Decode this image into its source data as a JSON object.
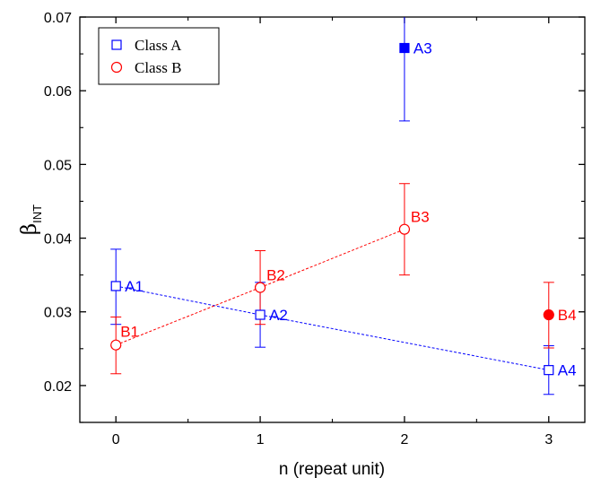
{
  "chart_data": {
    "type": "scatter",
    "title": "",
    "xlabel": "n (repeat unit)",
    "ylabel": {
      "main": "β",
      "sub": "INT"
    },
    "xlim": [
      -0.25,
      3.25
    ],
    "ylim": [
      0.015,
      0.07
    ],
    "xticks": [
      0,
      1,
      2,
      3
    ],
    "xtick_labels": [
      "0",
      "1",
      "2",
      "3"
    ],
    "yticks": [
      0.02,
      0.03,
      0.04,
      0.05,
      0.06,
      0.07
    ],
    "ytick_labels": [
      "0.02",
      "0.03",
      "0.04",
      "0.05",
      "0.06",
      "0.07"
    ],
    "grid": false,
    "legend": {
      "position": "top-left",
      "entries": [
        {
          "label": "Class A",
          "marker": "square-open",
          "color": "#0000ff"
        },
        {
          "label": "Class B",
          "marker": "circle-open",
          "color": "#ff0000"
        }
      ]
    },
    "series": [
      {
        "name": "Class A",
        "color": "#0000ff",
        "marker": "square",
        "points": [
          {
            "label": "A1",
            "x": 0,
            "y": 0.0335,
            "err_low": 0.0283,
            "err_high": 0.0385,
            "filled": false,
            "label_side": "right"
          },
          {
            "label": "A2",
            "x": 1,
            "y": 0.0296,
            "err_low": 0.0252,
            "err_high": 0.034,
            "filled": false,
            "label_side": "right"
          },
          {
            "label": "A3",
            "x": 2,
            "y": 0.0658,
            "err_low": 0.0559,
            "err_high": 0.07,
            "filled": true,
            "label_side": "right"
          },
          {
            "label": "A4",
            "x": 3,
            "y": 0.0221,
            "err_low": 0.0188,
            "err_high": 0.0254,
            "filled": false,
            "label_side": "right"
          }
        ],
        "trend_points": [
          "A1",
          "A2",
          "A4"
        ]
      },
      {
        "name": "Class B",
        "color": "#ff0000",
        "marker": "circle",
        "points": [
          {
            "label": "B1",
            "x": 0,
            "y": 0.0255,
            "err_low": 0.0216,
            "err_high": 0.0293,
            "filled": false,
            "label_side": "upper-right"
          },
          {
            "label": "B2",
            "x": 1,
            "y": 0.0333,
            "err_low": 0.0283,
            "err_high": 0.0383,
            "filled": false,
            "label_side": "upper-right"
          },
          {
            "label": "B3",
            "x": 2,
            "y": 0.0412,
            "err_low": 0.035,
            "err_high": 0.0474,
            "filled": false,
            "label_side": "upper-right"
          },
          {
            "label": "B4",
            "x": 3,
            "y": 0.0296,
            "err_low": 0.0251,
            "err_high": 0.034,
            "filled": true,
            "label_side": "right"
          }
        ],
        "trend_points": [
          "B1",
          "B2",
          "B3"
        ]
      }
    ]
  }
}
